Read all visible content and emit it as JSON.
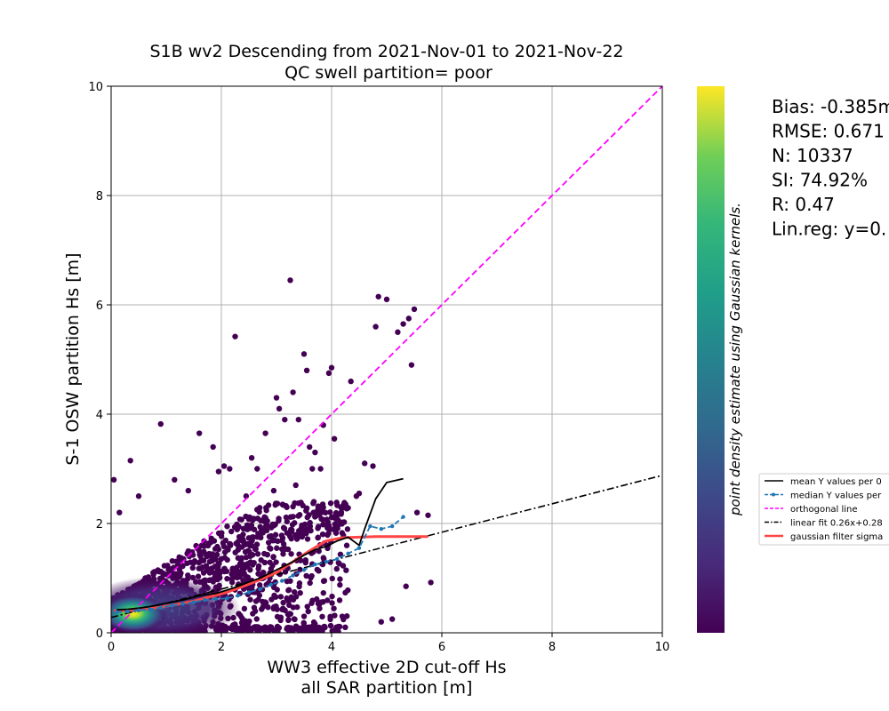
{
  "chart_data": {
    "type": "scatter",
    "title_line1": "S1B wv2 Descending from 2021-Nov-01 to 2021-Nov-22",
    "title_line2": "QC swell partition= poor",
    "xlabel_line1": "WW3 effective 2D cut-off Hs",
    "xlabel_line2": "all SAR partition [m]",
    "ylabel": "S-1 OSW partition Hs [m]",
    "xlim": [
      0,
      10
    ],
    "ylim": [
      0,
      10
    ],
    "xticks": [
      "0",
      "2",
      "4",
      "6",
      "8",
      "10"
    ],
    "yticks": [
      "0",
      "2",
      "4",
      "6",
      "8",
      "10"
    ],
    "grid": true,
    "colorbar_label": "point density estimate using Gaussian kernels.",
    "colormap": "viridis",
    "stats": [
      "Bias: -0.385m",
      "RMSE: 0.671",
      "N: 10337",
      "SI: 74.92%",
      "R: 0.47",
      "Lin.reg: y=0."
    ],
    "legend": {
      "placement": "right, outside colorbar (clipped)",
      "entries": [
        {
          "label": "mean Y values per 0",
          "color": "#000000",
          "style": "solid"
        },
        {
          "label": "median Y values per",
          "color": "#1f77b4",
          "style": "dashed-dot-marker"
        },
        {
          "label": "orthogonal line",
          "color": "#ff00ff",
          "style": "dashed"
        },
        {
          "label": "linear fit 0.26x+0.28",
          "color": "#000000",
          "style": "dashdot"
        },
        {
          "label": "gaussian filter sigma",
          "color": "#ff4444",
          "style": "solid-thick"
        }
      ]
    },
    "series": [
      {
        "name": "orthogonal line",
        "x": [
          0,
          10
        ],
        "y": [
          0,
          10
        ]
      },
      {
        "name": "linear fit 0.26x+0.28",
        "x": [
          0,
          10
        ],
        "y": [
          0.28,
          2.88
        ]
      },
      {
        "name": "mean Y values per 0",
        "x": [
          0.1,
          0.3,
          0.5,
          0.7,
          0.9,
          1.1,
          1.3,
          1.5,
          1.7,
          1.9,
          2.1,
          2.3,
          2.5,
          2.7,
          2.9,
          3.1,
          3.3,
          3.5,
          3.7,
          3.9,
          4.1,
          4.3,
          4.5,
          4.6,
          4.8,
          5.0,
          5.3
        ],
        "y": [
          0.42,
          0.43,
          0.45,
          0.48,
          0.52,
          0.56,
          0.6,
          0.65,
          0.7,
          0.72,
          0.78,
          0.85,
          0.93,
          1.0,
          1.1,
          1.2,
          1.3,
          1.42,
          1.52,
          1.58,
          1.68,
          1.75,
          1.6,
          1.9,
          2.45,
          2.75,
          2.82
        ]
      },
      {
        "name": "median Y values per",
        "x": [
          0.1,
          0.3,
          0.5,
          0.7,
          0.9,
          1.1,
          1.3,
          1.5,
          1.7,
          1.9,
          2.1,
          2.3,
          2.5,
          2.7,
          2.9,
          3.1,
          3.3,
          3.5,
          3.7,
          3.9,
          4.1,
          4.3,
          4.5,
          4.7,
          4.9,
          5.1,
          5.3
        ],
        "y": [
          0.38,
          0.39,
          0.41,
          0.43,
          0.46,
          0.5,
          0.53,
          0.56,
          0.6,
          0.62,
          0.63,
          0.68,
          0.74,
          0.8,
          0.88,
          0.95,
          1.05,
          1.15,
          1.25,
          1.3,
          1.35,
          1.45,
          1.55,
          1.95,
          1.9,
          1.95,
          2.12
        ]
      },
      {
        "name": "gaussian filter sigma",
        "x": [
          0.05,
          0.3,
          0.6,
          0.9,
          1.2,
          1.5,
          1.8,
          2.1,
          2.4,
          2.7,
          3.0,
          3.3,
          3.6,
          3.9,
          4.2,
          4.5,
          4.8,
          5.2,
          5.5,
          5.75
        ],
        "y": [
          0.4,
          0.41,
          0.43,
          0.47,
          0.52,
          0.58,
          0.66,
          0.74,
          0.85,
          0.97,
          1.1,
          1.3,
          1.5,
          1.68,
          1.74,
          1.75,
          1.76,
          1.76,
          1.76,
          1.76
        ]
      }
    ],
    "scatter_outliers": {
      "x": [
        0.05,
        0.15,
        0.35,
        0.5,
        0.9,
        1.15,
        1.4,
        1.6,
        1.85,
        1.95,
        2.05,
        2.15,
        2.25,
        2.55,
        2.65,
        2.8,
        3.0,
        3.05,
        3.15,
        3.25,
        3.3,
        3.4,
        3.5,
        3.55,
        3.6,
        3.65,
        3.7,
        3.8,
        3.85,
        3.95,
        4.0,
        4.05,
        4.35,
        4.45,
        4.6,
        4.75,
        4.8,
        4.85,
        5.0,
        5.2,
        5.3,
        5.4,
        5.45,
        5.5,
        5.55,
        4.9,
        5.1,
        5.35,
        5.75,
        5.8,
        4.5,
        4.2,
        3.35,
        2.95,
        2.45
      ],
      "y": [
        2.8,
        2.2,
        3.15,
        2.5,
        3.82,
        2.8,
        2.6,
        3.65,
        3.4,
        2.95,
        3.05,
        3.0,
        5.42,
        3.2,
        3.0,
        3.65,
        4.3,
        4.1,
        3.9,
        6.45,
        4.4,
        3.9,
        5.1,
        4.8,
        3.4,
        3.0,
        3.3,
        3.0,
        3.8,
        4.75,
        4.85,
        3.55,
        4.6,
        2.5,
        3.1,
        3.05,
        5.6,
        6.15,
        6.1,
        5.5,
        5.65,
        5.75,
        4.9,
        5.92,
        2.2,
        0.2,
        0.25,
        0.85,
        2.15,
        0.92,
        2.55,
        2.3,
        2.7,
        2.6,
        2.5
      ]
    }
  }
}
